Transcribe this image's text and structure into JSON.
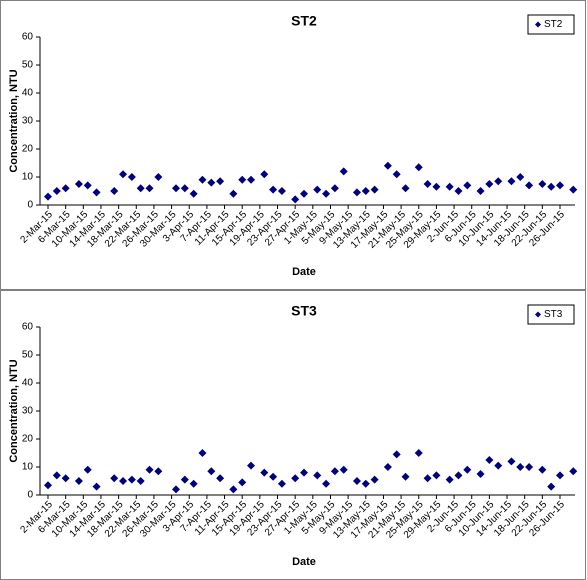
{
  "chart_data": [
    {
      "type": "scatter",
      "title": "ST2",
      "xlabel": "Date",
      "ylabel": "Concentration, NTU",
      "legend": "upper right",
      "grid": false,
      "x": [
        "2-Mar-15",
        "4-Mar-15",
        "6-Mar-15",
        "9-Mar-15",
        "11-Mar-15",
        "13-Mar-15",
        "17-Mar-15",
        "19-Mar-15",
        "21-Mar-15",
        "23-Mar-15",
        "25-Mar-15",
        "27-Mar-15",
        "31-Mar-15",
        "2-Apr-15",
        "4-Apr-15",
        "6-Apr-15",
        "8-Apr-15",
        "10-Apr-15",
        "13-Apr-15",
        "15-Apr-15",
        "17-Apr-15",
        "20-Apr-15",
        "22-Apr-15",
        "24-Apr-15",
        "27-Apr-15",
        "29-Apr-15",
        "2-May-15",
        "4-May-15",
        "6-May-15",
        "8-May-15",
        "11-May-15",
        "13-May-15",
        "15-May-15",
        "18-May-15",
        "20-May-15",
        "22-May-15",
        "25-May-15",
        "27-May-15",
        "29-May-15",
        "1-Jun-15",
        "3-Jun-15",
        "5-Jun-15",
        "8-Jun-15",
        "10-Jun-15",
        "12-Jun-15",
        "15-Jun-15",
        "17-Jun-15",
        "19-Jun-15",
        "22-Jun-15",
        "24-Jun-15",
        "26-Jun-15",
        "29-Jun-15"
      ],
      "series": [
        {
          "name": "ST2",
          "color": "#00007f",
          "values": [
            3,
            5,
            6,
            7.5,
            7,
            4.5,
            5,
            11,
            10,
            6,
            6,
            10,
            6,
            6,
            4,
            9,
            8,
            8.5,
            4,
            9,
            9,
            11,
            5.5,
            5,
            2,
            4,
            5.5,
            4,
            6,
            12,
            4.5,
            5,
            5.5,
            14,
            11,
            6,
            13.5,
            7.5,
            6.5,
            6.5,
            5,
            7,
            5,
            7.5,
            8.5,
            8.5,
            10,
            7,
            7.5,
            6.5,
            7,
            5.5
          ]
        }
      ],
      "ylim": [
        0,
        60
      ],
      "yticks": [
        0,
        10,
        20,
        30,
        40,
        50,
        60
      ],
      "xticks": [
        "2-Mar-15",
        "6-Mar-15",
        "10-Mar-15",
        "14-Mar-15",
        "18-Mar-15",
        "22-Mar-15",
        "26-Mar-15",
        "30-Mar-15",
        "3-Apr-15",
        "7-Apr-15",
        "11-Apr-15",
        "15-Apr-15",
        "19-Apr-15",
        "23-Apr-15",
        "27-Apr-15",
        "1-May-15",
        "5-May-15",
        "9-May-15",
        "13-May-15",
        "17-May-15",
        "21-May-15",
        "25-May-15",
        "29-May-15",
        "2-Jun-15",
        "6-Jun-15",
        "10-Jun-15",
        "14-Jun-15",
        "18-Jun-15",
        "22-Jun-15",
        "26-Jun-15"
      ]
    },
    {
      "type": "scatter",
      "title": "ST3",
      "xlabel": "Date",
      "ylabel": "Concentration, NTU",
      "legend": "upper right",
      "grid": false,
      "x": [
        "2-Mar-15",
        "4-Mar-15",
        "6-Mar-15",
        "9-Mar-15",
        "11-Mar-15",
        "13-Mar-15",
        "17-Mar-15",
        "19-Mar-15",
        "21-Mar-15",
        "23-Mar-15",
        "25-Mar-15",
        "27-Mar-15",
        "31-Mar-15",
        "2-Apr-15",
        "4-Apr-15",
        "6-Apr-15",
        "8-Apr-15",
        "10-Apr-15",
        "13-Apr-15",
        "15-Apr-15",
        "17-Apr-15",
        "20-Apr-15",
        "22-Apr-15",
        "24-Apr-15",
        "27-Apr-15",
        "29-Apr-15",
        "2-May-15",
        "4-May-15",
        "6-May-15",
        "8-May-15",
        "11-May-15",
        "13-May-15",
        "15-May-15",
        "18-May-15",
        "20-May-15",
        "22-May-15",
        "25-May-15",
        "27-May-15",
        "29-May-15",
        "1-Jun-15",
        "3-Jun-15",
        "5-Jun-15",
        "8-Jun-15",
        "10-Jun-15",
        "12-Jun-15",
        "15-Jun-15",
        "17-Jun-15",
        "19-Jun-15",
        "22-Jun-15",
        "24-Jun-15",
        "26-Jun-15",
        "29-Jun-15"
      ],
      "series": [
        {
          "name": "ST3",
          "color": "#00007f",
          "values": [
            3.5,
            7,
            6,
            5,
            9,
            3,
            6,
            5,
            5.5,
            5,
            9,
            8.5,
            2,
            5.5,
            4,
            15,
            8.5,
            6,
            2,
            4.5,
            10.5,
            8,
            6.5,
            4,
            6,
            8,
            7,
            4,
            8.5,
            9,
            5,
            4,
            5.5,
            10,
            14.5,
            6.5,
            15,
            6,
            7,
            5.5,
            7,
            9,
            7.5,
            12.5,
            10.5,
            12,
            10,
            10,
            9,
            3,
            7,
            8.5
          ]
        }
      ],
      "ylim": [
        0,
        60
      ],
      "yticks": [
        0,
        10,
        20,
        30,
        40,
        50,
        60
      ],
      "xticks": [
        "2-Mar-15",
        "6-Mar-15",
        "10-Mar-15",
        "14-Mar-15",
        "18-Mar-15",
        "22-Mar-15",
        "26-Mar-15",
        "30-Mar-15",
        "3-Apr-15",
        "7-Apr-15",
        "11-Apr-15",
        "15-Apr-15",
        "19-Apr-15",
        "23-Apr-15",
        "27-Apr-15",
        "1-May-15",
        "5-May-15",
        "9-May-15",
        "13-May-15",
        "17-May-15",
        "21-May-15",
        "25-May-15",
        "29-May-15",
        "2-Jun-15",
        "6-Jun-15",
        "10-Jun-15",
        "14-Jun-15",
        "18-Jun-15",
        "22-Jun-15",
        "26-Jun-15"
      ]
    }
  ]
}
